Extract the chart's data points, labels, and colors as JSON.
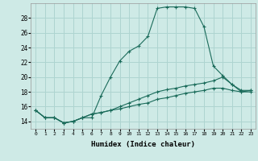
{
  "xlabel": "Humidex (Indice chaleur)",
  "bg_color": "#ceeae6",
  "grid_color": "#aed4d0",
  "line_color": "#1a6b5a",
  "xlim": [
    -0.5,
    23.5
  ],
  "ylim": [
    13.0,
    30.0
  ],
  "yticks": [
    14,
    16,
    18,
    20,
    22,
    24,
    26,
    28
  ],
  "xticks": [
    0,
    1,
    2,
    3,
    4,
    5,
    6,
    7,
    8,
    9,
    10,
    11,
    12,
    13,
    14,
    15,
    16,
    17,
    18,
    19,
    20,
    21,
    22,
    23
  ],
  "series": [
    {
      "x": [
        0,
        1,
        2,
        3,
        4,
        5,
        6,
        7,
        8,
        9,
        10,
        11,
        12,
        13,
        14,
        15,
        16,
        17,
        18,
        19,
        20,
        21,
        22,
        23
      ],
      "y": [
        15.5,
        14.5,
        14.5,
        13.8,
        14.0,
        14.5,
        14.5,
        17.5,
        20.0,
        22.2,
        23.5,
        24.2,
        25.5,
        29.3,
        29.5,
        29.5,
        29.5,
        29.3,
        26.8,
        21.5,
        20.2,
        19.0,
        18.0,
        18.2
      ]
    },
    {
      "x": [
        0,
        1,
        2,
        3,
        4,
        5,
        6,
        7,
        8,
        9,
        10,
        11,
        12,
        13,
        14,
        15,
        16,
        17,
        18,
        19,
        20,
        21,
        22,
        23
      ],
      "y": [
        15.5,
        14.5,
        14.5,
        13.8,
        14.0,
        14.5,
        15.0,
        15.2,
        15.5,
        16.0,
        16.5,
        17.0,
        17.5,
        18.0,
        18.3,
        18.5,
        18.8,
        19.0,
        19.2,
        19.5,
        20.0,
        19.0,
        18.2,
        18.2
      ]
    },
    {
      "x": [
        0,
        1,
        2,
        3,
        4,
        5,
        6,
        7,
        8,
        9,
        10,
        11,
        12,
        13,
        14,
        15,
        16,
        17,
        18,
        19,
        20,
        21,
        22,
        23
      ],
      "y": [
        15.5,
        14.5,
        14.5,
        13.8,
        14.0,
        14.5,
        15.0,
        15.2,
        15.5,
        15.7,
        16.0,
        16.3,
        16.5,
        17.0,
        17.2,
        17.5,
        17.8,
        18.0,
        18.2,
        18.5,
        18.5,
        18.2,
        18.0,
        18.0
      ]
    }
  ]
}
